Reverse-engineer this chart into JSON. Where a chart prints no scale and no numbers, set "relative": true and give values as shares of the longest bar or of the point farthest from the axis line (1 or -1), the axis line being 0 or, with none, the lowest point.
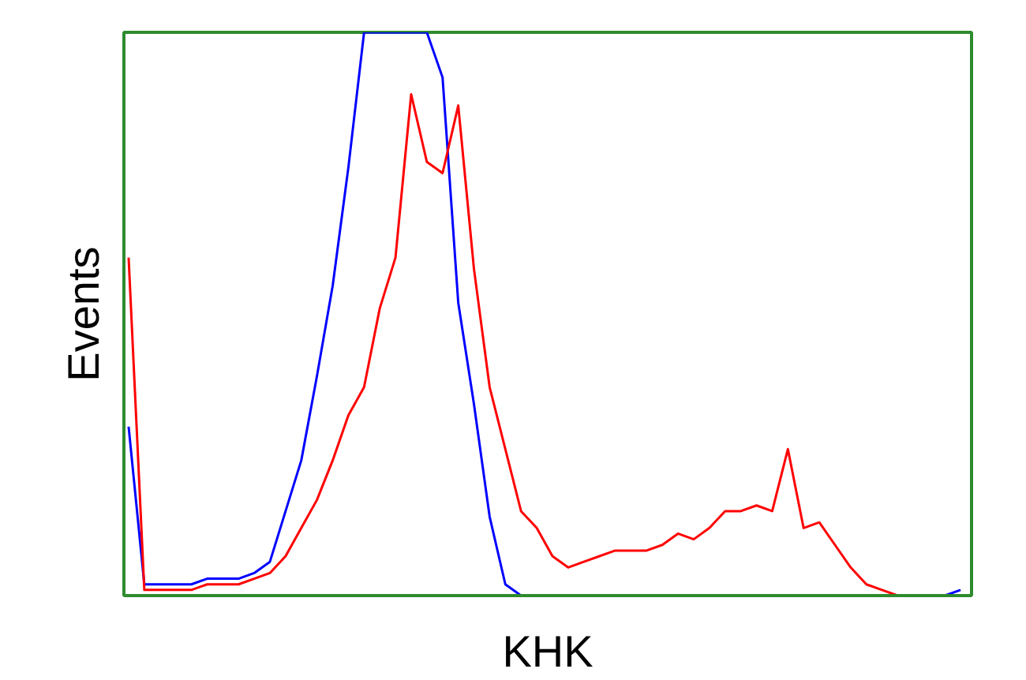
{
  "chart_data": {
    "type": "line",
    "relative": true,
    "xlabel": "KHK",
    "ylabel": "Events",
    "categories": [
      null,
      null,
      null,
      null,
      null,
      null,
      null,
      null,
      null,
      null,
      null,
      null,
      null,
      null,
      null,
      null,
      null,
      null,
      null,
      null,
      null,
      null,
      null,
      null,
      null,
      null,
      null,
      null,
      null,
      null,
      null,
      null,
      null,
      null,
      null,
      null,
      null,
      null,
      null,
      null,
      null,
      null,
      null,
      null,
      null,
      null,
      null,
      null,
      null,
      null,
      null,
      null,
      null,
      null
    ],
    "series": [
      {
        "color": "#0000ff",
        "values": [
          0.3,
          0.02,
          0.02,
          0.02,
          0.02,
          0.03,
          0.03,
          0.03,
          0.04,
          0.06,
          0.15,
          0.24,
          0.39,
          0.55,
          0.76,
          1,
          1,
          1,
          1,
          1,
          0.92,
          0.52,
          0.34,
          0.14,
          0.02,
          0,
          0,
          0,
          0,
          0,
          0,
          0,
          0,
          0,
          0,
          0,
          0,
          0,
          0,
          0,
          0,
          0,
          0,
          0,
          0,
          0,
          0,
          0,
          0,
          0,
          0,
          0,
          0,
          0.01
        ]
      },
      {
        "color": "#ff0000",
        "values": [
          0.6,
          0.01,
          0.01,
          0.01,
          0.01,
          0.02,
          0.02,
          0.02,
          0.03,
          0.04,
          0.07,
          0.12,
          0.17,
          0.24,
          0.32,
          0.37,
          0.51,
          0.6,
          0.89,
          0.77,
          0.75,
          0.87,
          0.58,
          0.37,
          0.26,
          0.15,
          0.12,
          0.07,
          0.05,
          0.06,
          0.07,
          0.08,
          0.08,
          0.08,
          0.09,
          0.11,
          0.1,
          0.12,
          0.15,
          0.15,
          0.16,
          0.15,
          0.26,
          0.12,
          0.13,
          0.09,
          0.05,
          0.02,
          0.01,
          0,
          0,
          null,
          null,
          null
        ]
      }
    ]
  }
}
